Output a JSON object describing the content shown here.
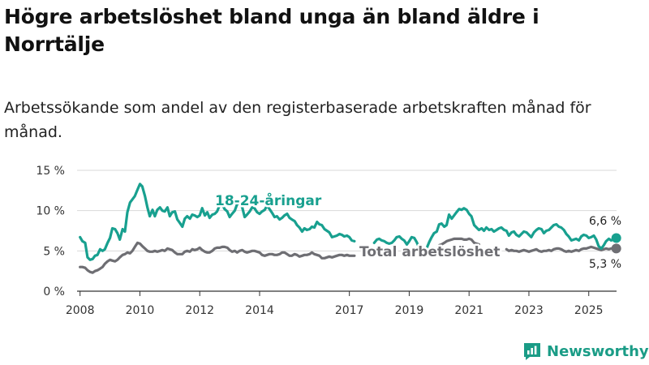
{
  "title": "Högre arbetslöshet bland unga än bland äldre i Norrtälje",
  "subtitle": "Arbetssökande som andel av den registerbaserade arbetskraften månad för månad.",
  "brand": "Newsworthy",
  "colors": {
    "youth": "#18a08f",
    "total": "#6e6e73",
    "grid": "#d9d9d9",
    "axis": "#333333",
    "brand": "#1a9c86"
  },
  "chart_data": {
    "type": "line",
    "title": "Högre arbetslöshet bland unga än bland äldre i Norrtälje",
    "xlabel": "",
    "ylabel": "",
    "ylim": [
      0,
      15
    ],
    "xlim": [
      2007.9,
      2026.2
    ],
    "y_ticks": [
      0,
      5,
      10,
      15
    ],
    "y_tick_labels": [
      "0 %",
      "5 %",
      "10 %",
      "15 %"
    ],
    "x_ticks": [
      2008,
      2010,
      2012,
      2014,
      2017,
      2019,
      2021,
      2023,
      2025
    ],
    "x_tick_labels": [
      "2008",
      "2010",
      "2012",
      "2014",
      "2017",
      "2019",
      "2021",
      "2023",
      "2025"
    ],
    "grid": true,
    "series": [
      {
        "name": "18-24-åringar",
        "label": "18-24-åringar",
        "end_label": "6,6 %",
        "color": "#18a08f",
        "segments": [
          {
            "x": [
              2008.0,
              2008.08,
              2008.17,
              2008.25,
              2008.33,
              2008.42,
              2008.5,
              2008.58,
              2008.67,
              2008.75,
              2008.83,
              2008.92,
              2009.0,
              2009.08,
              2009.17,
              2009.25,
              2009.33,
              2009.42,
              2009.5,
              2009.58,
              2009.67,
              2009.75,
              2009.83,
              2009.92,
              2010.0,
              2010.08,
              2010.17,
              2010.25,
              2010.33,
              2010.42,
              2010.5,
              2010.58,
              2010.67,
              2010.75,
              2010.83,
              2010.92,
              2011.0,
              2011.08,
              2011.17,
              2011.25,
              2011.33,
              2011.42,
              2011.5,
              2011.58,
              2011.67,
              2011.75,
              2011.83,
              2011.92,
              2012.0,
              2012.08,
              2012.17,
              2012.25,
              2012.33,
              2012.42,
              2012.5,
              2012.58,
              2012.67,
              2012.75,
              2012.83,
              2012.92,
              2013.0,
              2013.08,
              2013.17,
              2013.25,
              2013.33,
              2013.42,
              2013.5,
              2013.58,
              2013.67,
              2013.75,
              2013.83,
              2013.92,
              2014.0,
              2014.08,
              2014.17,
              2014.25,
              2014.33,
              2014.42,
              2014.5,
              2014.58,
              2014.67,
              2014.75,
              2014.83,
              2014.92,
              2015.0,
              2015.08,
              2015.17,
              2015.25,
              2015.33,
              2015.42,
              2015.5,
              2015.58,
              2015.67,
              2015.75,
              2015.83,
              2015.92,
              2016.0,
              2016.08,
              2016.17,
              2016.25,
              2016.33,
              2016.42,
              2016.5,
              2016.58,
              2016.67,
              2016.75,
              2016.83,
              2016.92,
              2017.0,
              2017.08,
              2017.17
            ],
            "y": [
              6.7,
              6.2,
              6.0,
              4.2,
              3.9,
              4.0,
              4.4,
              4.5,
              5.2,
              5.0,
              5.2,
              6.0,
              6.6,
              7.8,
              7.7,
              7.2,
              6.4,
              7.7,
              7.4,
              9.8,
              11.0,
              11.4,
              11.8,
              12.6,
              13.3,
              13.0,
              11.8,
              10.4,
              9.3,
              10.1,
              9.3,
              10.1,
              10.4,
              10.0,
              9.9,
              10.4,
              9.3,
              9.8,
              9.9,
              8.9,
              8.5,
              8.0,
              9.0,
              9.3,
              9.0,
              9.5,
              9.4,
              9.2,
              9.4,
              10.3,
              9.4,
              9.8,
              9.1,
              9.5,
              9.6,
              9.9,
              10.7,
              10.8,
              10.2,
              9.9,
              9.2,
              9.6,
              10.0,
              10.8,
              11.0,
              10.4,
              9.2,
              9.5,
              9.9,
              10.4,
              10.3,
              9.8,
              9.6,
              9.9,
              10.1,
              10.6,
              10.2,
              9.7,
              9.2,
              9.3,
              8.9,
              9.1,
              9.4,
              9.6,
              9.1,
              8.9,
              8.7,
              8.2,
              7.9,
              7.4,
              7.8,
              7.6,
              7.7,
              8.0,
              7.9,
              8.6,
              8.3,
              8.2,
              7.7,
              7.5,
              7.3,
              6.7,
              6.8,
              6.9,
              7.1,
              7.0,
              6.8,
              6.9,
              6.7,
              6.3,
              6.2
            ]
          },
          {
            "x": [
              2017.83,
              2017.92,
              2018.0,
              2018.08,
              2018.17,
              2018.25,
              2018.33,
              2018.42,
              2018.5,
              2018.58,
              2018.67,
              2018.75,
              2018.83,
              2018.92,
              2019.0,
              2019.08,
              2019.17,
              2019.25,
              2019.33
            ],
            "y": [
              6.0,
              6.4,
              6.5,
              6.3,
              6.2,
              6.0,
              5.9,
              6.0,
              6.3,
              6.7,
              6.8,
              6.5,
              6.3,
              5.8,
              6.2,
              6.7,
              6.6,
              6.1,
              5.4
            ]
          },
          {
            "x": [
              2019.58,
              2019.67,
              2019.75,
              2019.83,
              2019.92,
              2020.0,
              2020.08,
              2020.17,
              2020.25,
              2020.33,
              2020.42,
              2020.5,
              2020.58,
              2020.67,
              2020.75,
              2020.83,
              2020.92,
              2021.0,
              2021.08,
              2021.17,
              2021.25,
              2021.33,
              2021.42,
              2021.5,
              2021.58,
              2021.67,
              2021.75,
              2021.83,
              2021.92,
              2022.0,
              2022.08,
              2022.17,
              2022.25,
              2022.33,
              2022.42,
              2022.5,
              2022.58,
              2022.67,
              2022.75,
              2022.83,
              2022.92,
              2023.0,
              2023.08,
              2023.17,
              2023.25,
              2023.33,
              2023.42,
              2023.5,
              2023.58,
              2023.67,
              2023.75,
              2023.83,
              2023.92,
              2024.0,
              2024.08,
              2024.17,
              2024.25,
              2024.33,
              2024.42,
              2024.5,
              2024.58,
              2024.67,
              2024.75,
              2024.83,
              2024.92,
              2025.0,
              2025.08,
              2025.17,
              2025.25,
              2025.33,
              2025.42,
              2025.5,
              2025.58,
              2025.67,
              2025.75,
              2025.83,
              2025.92
            ],
            "y": [
              5.3,
              6.1,
              6.7,
              7.2,
              7.4,
              8.3,
              8.4,
              8.0,
              8.2,
              9.5,
              9.0,
              9.4,
              9.8,
              10.2,
              10.1,
              10.3,
              10.1,
              9.6,
              9.3,
              8.2,
              7.9,
              7.6,
              7.8,
              7.5,
              7.9,
              7.6,
              7.7,
              7.4,
              7.6,
              7.8,
              7.9,
              7.6,
              7.5,
              6.9,
              7.3,
              7.4,
              7.0,
              6.8,
              7.1,
              7.4,
              7.3,
              7.0,
              6.7,
              7.3,
              7.6,
              7.8,
              7.7,
              7.2,
              7.5,
              7.6,
              7.9,
              8.2,
              8.3,
              8.0,
              7.9,
              7.6,
              7.1,
              6.8,
              6.3,
              6.4,
              6.5,
              6.3,
              6.8,
              7.0,
              6.9,
              6.6,
              6.7,
              6.9,
              6.4,
              5.6,
              5.3,
              5.7,
              6.2,
              6.5,
              6.3,
              6.5,
              6.6
            ]
          }
        ]
      },
      {
        "name": "Total arbetslöshet",
        "label": "Total arbetslöshet",
        "end_label": "5,3 %",
        "color": "#6e6e73",
        "segments": [
          {
            "x": [
              2008.0,
              2008.08,
              2008.17,
              2008.25,
              2008.33,
              2008.42,
              2008.5,
              2008.58,
              2008.67,
              2008.75,
              2008.83,
              2008.92,
              2009.0,
              2009.08,
              2009.17,
              2009.25,
              2009.33,
              2009.42,
              2009.5,
              2009.58,
              2009.67,
              2009.75,
              2009.83,
              2009.92,
              2010.0,
              2010.08,
              2010.17,
              2010.25,
              2010.33,
              2010.42,
              2010.5,
              2010.58,
              2010.67,
              2010.75,
              2010.83,
              2010.92,
              2011.0,
              2011.08,
              2011.17,
              2011.25,
              2011.33,
              2011.42,
              2011.5,
              2011.58,
              2011.67,
              2011.75,
              2011.83,
              2011.92,
              2012.0,
              2012.08,
              2012.17,
              2012.25,
              2012.33,
              2012.42,
              2012.5,
              2012.58,
              2012.67,
              2012.75,
              2012.83,
              2012.92,
              2013.0,
              2013.08,
              2013.17,
              2013.25,
              2013.33,
              2013.42,
              2013.5,
              2013.58,
              2013.67,
              2013.75,
              2013.83,
              2013.92,
              2014.0,
              2014.08,
              2014.17,
              2014.25,
              2014.33,
              2014.42,
              2014.5,
              2014.58,
              2014.67,
              2014.75,
              2014.83,
              2014.92,
              2015.0,
              2015.08,
              2015.17,
              2015.25,
              2015.33,
              2015.42,
              2015.5,
              2015.58,
              2015.67,
              2015.75,
              2015.83,
              2015.92,
              2016.0,
              2016.08,
              2016.17,
              2016.25,
              2016.33,
              2016.42,
              2016.5,
              2016.58,
              2016.67,
              2016.75,
              2016.83,
              2016.92,
              2017.0,
              2017.08,
              2017.17
            ],
            "y": [
              3.0,
              3.0,
              2.9,
              2.6,
              2.4,
              2.3,
              2.5,
              2.6,
              2.8,
              3.0,
              3.4,
              3.7,
              3.9,
              3.8,
              3.7,
              3.9,
              4.2,
              4.5,
              4.6,
              4.8,
              4.7,
              5.0,
              5.5,
              6.0,
              5.9,
              5.6,
              5.3,
              5.0,
              4.9,
              4.9,
              5.0,
              4.9,
              5.0,
              5.1,
              5.0,
              5.3,
              5.2,
              5.1,
              4.8,
              4.6,
              4.6,
              4.6,
              4.9,
              5.0,
              4.9,
              5.2,
              5.1,
              5.2,
              5.4,
              5.1,
              4.9,
              4.8,
              4.8,
              5.0,
              5.3,
              5.4,
              5.4,
              5.5,
              5.5,
              5.4,
              5.1,
              4.9,
              5.0,
              4.8,
              5.0,
              5.1,
              4.9,
              4.8,
              4.9,
              5.0,
              5.0,
              4.9,
              4.8,
              4.5,
              4.4,
              4.5,
              4.6,
              4.6,
              4.5,
              4.5,
              4.6,
              4.8,
              4.8,
              4.6,
              4.4,
              4.4,
              4.6,
              4.5,
              4.3,
              4.4,
              4.5,
              4.5,
              4.6,
              4.8,
              4.6,
              4.5,
              4.4,
              4.1,
              4.1,
              4.2,
              4.3,
              4.2,
              4.3,
              4.4,
              4.5,
              4.5,
              4.4,
              4.5,
              4.4,
              4.4,
              4.4
            ]
          },
          {
            "x": [
              2019.83,
              2019.92,
              2020.0,
              2020.08,
              2020.17,
              2020.25,
              2020.33,
              2020.42,
              2020.5,
              2020.58,
              2020.67,
              2020.75,
              2020.83,
              2020.92,
              2021.0,
              2021.08,
              2021.17,
              2021.25,
              2021.33
            ],
            "y": [
              5.1,
              5.3,
              5.7,
              5.8,
              6.0,
              6.2,
              6.3,
              6.4,
              6.5,
              6.5,
              6.5,
              6.5,
              6.4,
              6.4,
              6.5,
              6.4,
              6.0,
              5.9,
              5.8
            ]
          },
          {
            "x": [
              2022.25,
              2022.33,
              2022.42,
              2022.5,
              2022.58,
              2022.67,
              2022.75,
              2022.83,
              2022.92,
              2023.0,
              2023.08,
              2023.17,
              2023.25,
              2023.33,
              2023.42,
              2023.5,
              2023.58,
              2023.67,
              2023.75,
              2023.83,
              2023.92,
              2024.0,
              2024.08,
              2024.17,
              2024.25,
              2024.33,
              2024.42,
              2024.5,
              2024.58,
              2024.67,
              2024.75,
              2024.83,
              2024.92,
              2025.0,
              2025.08,
              2025.17,
              2025.25,
              2025.33,
              2025.42,
              2025.5,
              2025.58,
              2025.67,
              2025.75,
              2025.83,
              2025.92
            ],
            "y": [
              5.2,
              5.0,
              5.1,
              5.0,
              5.0,
              4.9,
              5.0,
              5.1,
              5.0,
              4.9,
              5.0,
              5.1,
              5.2,
              5.0,
              4.9,
              5.0,
              5.0,
              5.1,
              5.0,
              5.2,
              5.3,
              5.3,
              5.2,
              5.0,
              4.9,
              5.0,
              4.9,
              5.0,
              5.1,
              5.0,
              5.2,
              5.3,
              5.3,
              5.4,
              5.5,
              5.4,
              5.3,
              5.2,
              5.1,
              5.2,
              5.3,
              5.2,
              5.3,
              5.3,
              5.3
            ]
          }
        ]
      }
    ]
  }
}
